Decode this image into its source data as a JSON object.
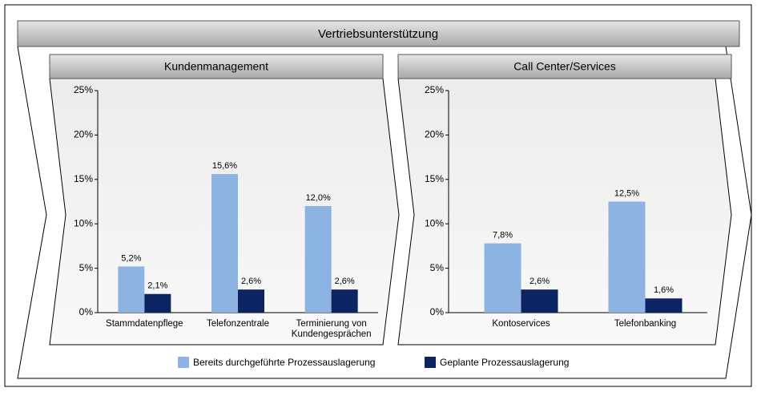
{
  "title": "Vertriebsunterstützung",
  "chart_data": [
    {
      "type": "bar",
      "title": "Kundenmanagement",
      "categories": [
        "Stammdatenpflege",
        "Telefonzentrale",
        "Terminierung von Kundengesprächen"
      ],
      "series": [
        {
          "name": "Bereits durchgeführte Prozessauslagerung",
          "color": "#8db3e2",
          "values": [
            5.2,
            15.6,
            12.0
          ],
          "value_labels": [
            "5,2%",
            "15,6%",
            "12,0%"
          ]
        },
        {
          "name": "Geplante Prozessauslagerung",
          "color": "#0c2461",
          "values": [
            2.1,
            2.6,
            2.6
          ],
          "value_labels": [
            "2,1%",
            "2,6%",
            "2,6%"
          ]
        }
      ],
      "ylim": [
        0,
        25
      ],
      "yticks": [
        {
          "value": 0,
          "label": "0%"
        },
        {
          "value": 5,
          "label": "5%"
        },
        {
          "value": 10,
          "label": "10%"
        },
        {
          "value": 15,
          "label": "15%"
        },
        {
          "value": 20,
          "label": "20%"
        },
        {
          "value": 25,
          "label": "25%"
        }
      ]
    },
    {
      "type": "bar",
      "title": "Call Center/Services",
      "categories": [
        "Kontoservices",
        "Telefonbanking"
      ],
      "series": [
        {
          "name": "Bereits durchgeführte Prozessauslagerung",
          "color": "#8db3e2",
          "values": [
            7.8,
            12.5
          ],
          "value_labels": [
            "7,8%",
            "12,5%"
          ]
        },
        {
          "name": "Geplante Prozessauslagerung",
          "color": "#0c2461",
          "values": [
            2.6,
            1.6
          ],
          "value_labels": [
            "2,6%",
            "1,6%"
          ]
        }
      ],
      "ylim": [
        0,
        25
      ],
      "yticks": [
        {
          "value": 0,
          "label": "0%"
        },
        {
          "value": 5,
          "label": "5%"
        },
        {
          "value": 10,
          "label": "10%"
        },
        {
          "value": 15,
          "label": "15%"
        },
        {
          "value": 20,
          "label": "20%"
        },
        {
          "value": 25,
          "label": "25%"
        }
      ]
    }
  ]
}
